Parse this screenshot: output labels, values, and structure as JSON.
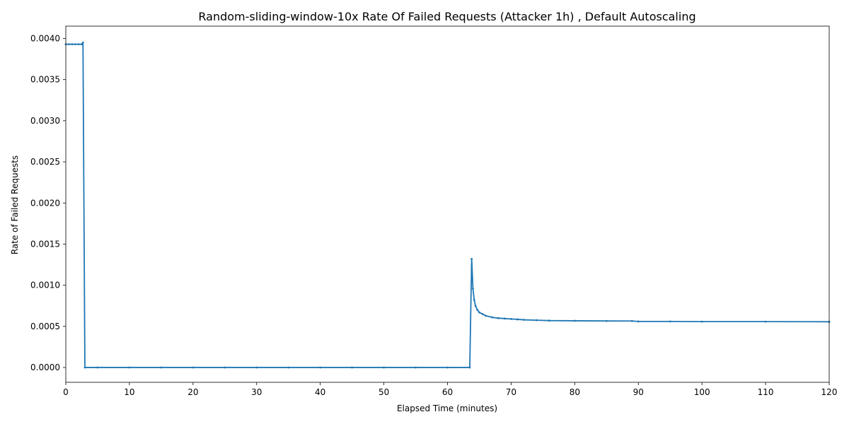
{
  "chart_data": {
    "type": "line",
    "title": "Random-sliding-window-10x Rate Of Failed Requests (Attacker 1h) , Default Autoscaling",
    "xlabel": "Elapsed Time (minutes)",
    "ylabel": "Rate of Failed Requests",
    "xlim": [
      0,
      120
    ],
    "ylim": [
      -0.00018,
      0.00415
    ],
    "x_ticks": [
      0,
      10,
      20,
      30,
      40,
      50,
      60,
      70,
      80,
      90,
      100,
      110,
      120
    ],
    "x_tick_labels": [
      "0",
      "10",
      "20",
      "30",
      "40",
      "50",
      "60",
      "70",
      "80",
      "90",
      "100",
      "110",
      "120"
    ],
    "y_ticks": [
      0,
      0.0005,
      0.001,
      0.0015,
      0.002,
      0.0025,
      0.003,
      0.0035,
      0.004
    ],
    "y_tick_labels": [
      "0.0000",
      "0.0005",
      "0.0010",
      "0.0015",
      "0.0020",
      "0.0025",
      "0.0030",
      "0.0035",
      "0.0040"
    ],
    "grid": false,
    "line_color": "#1f77b4",
    "series": [
      {
        "x": [
          0,
          0.5,
          1.0,
          1.5,
          2.0,
          2.5,
          2.7,
          3.0,
          5,
          10,
          15,
          20,
          25,
          30,
          35,
          40,
          45,
          50,
          55,
          60,
          63.5,
          63.8,
          64.0,
          64.2,
          64.4,
          64.7,
          65.0,
          65.5,
          66.0,
          67.0,
          68.0,
          69.0,
          70.0,
          71.0,
          72.0,
          74.0,
          76.0,
          80.0,
          85.0,
          89.0,
          90.0,
          95.0,
          100.0,
          110.0,
          120.0
        ],
        "y": [
          0.00393,
          0.00393,
          0.00393,
          0.00393,
          0.00393,
          0.00393,
          0.00395,
          0.0,
          0.0,
          0.0,
          0.0,
          0.0,
          0.0,
          0.0,
          0.0,
          0.0,
          0.0,
          0.0,
          0.0,
          0.0,
          0.0,
          0.00132,
          0.00096,
          0.00082,
          0.00075,
          0.0007,
          0.00067,
          0.00065,
          0.00063,
          0.00061,
          0.0006,
          0.000595,
          0.00059,
          0.000585,
          0.00058,
          0.000575,
          0.00057,
          0.000568,
          0.000566,
          0.000565,
          0.00056,
          0.00056,
          0.000558,
          0.000558,
          0.000556
        ]
      }
    ]
  }
}
